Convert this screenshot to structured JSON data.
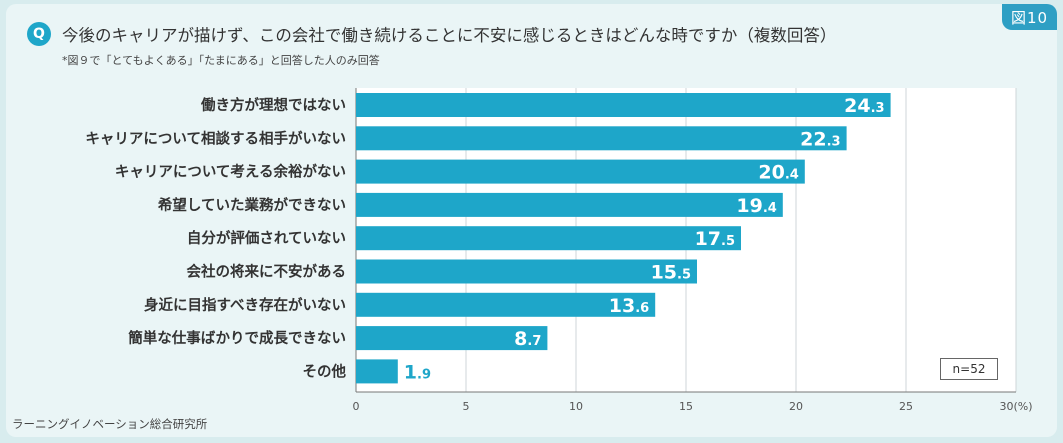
{
  "figure_label": "図10",
  "question": {
    "icon": "Q",
    "title": "今後のキャリアが描けず、この会社で働き続けることに不安に感じるときはどんな時ですか（複数回答）",
    "note": "*図９で「とてもよくある」「たまにある」と回答した人のみ回答"
  },
  "source": "ラーニングイノベーション総合研究所",
  "sample_size": "n=52",
  "colors": {
    "bar": "#1ea6c9",
    "grid": "#cfd6d8",
    "axis": "#777777"
  },
  "chart_data": {
    "type": "bar",
    "orientation": "horizontal",
    "title": "今後のキャリアが描けず、この会社で働き続けることに不安に感じるときはどんな時ですか（複数回答）",
    "categories": [
      "働き方が理想ではない",
      "キャリアについて相談する相手がいない",
      "キャリアについて考える余裕がない",
      "希望していた業務ができない",
      "自分が評価されていない",
      "会社の将来に不安がある",
      "身近に目指すべき存在がいない",
      "簡単な仕事ばかりで成長できない",
      "その他"
    ],
    "values": [
      24.3,
      22.3,
      20.4,
      19.4,
      17.5,
      15.5,
      13.6,
      8.7,
      1.9
    ],
    "value_labels": [
      {
        "int": "24",
        "dec": ".3"
      },
      {
        "int": "22",
        "dec": ".3"
      },
      {
        "int": "20",
        "dec": ".4"
      },
      {
        "int": "19",
        "dec": ".4"
      },
      {
        "int": "17",
        "dec": ".5"
      },
      {
        "int": "15",
        "dec": ".5"
      },
      {
        "int": "13",
        "dec": ".6"
      },
      {
        "int": "8",
        "dec": ".7"
      },
      {
        "int": "1",
        "dec": ".9"
      }
    ],
    "xlim": [
      0,
      30
    ],
    "xticks": [
      0,
      5,
      10,
      15,
      20,
      25,
      30
    ],
    "xtick_labels": [
      "0",
      "5",
      "10",
      "15",
      "20",
      "25",
      "30(%)"
    ],
    "xlabel": "(%)",
    "grid": true
  }
}
